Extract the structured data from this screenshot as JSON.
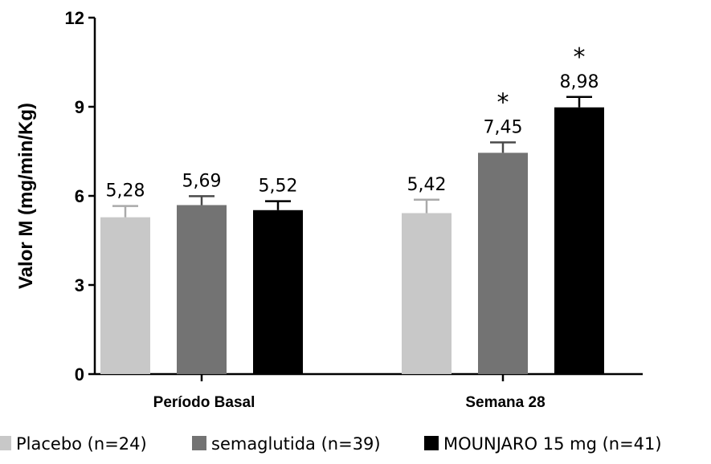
{
  "chart_data": {
    "type": "bar",
    "ylabel": "Valor M (mg/min/Kg)",
    "xlabel": "",
    "ylim": [
      0,
      12
    ],
    "yticks": [
      "0",
      "3",
      "6",
      "9",
      "12"
    ],
    "categories": [
      "Período Basal",
      "Semana 28"
    ],
    "series": [
      {
        "name": "Placebo (n=24)",
        "color": "#c8c8c8",
        "values": [
          5.28,
          5.42
        ],
        "errors": [
          0.38,
          0.45
        ],
        "labels": [
          "5,28",
          "5,42"
        ],
        "significance": [
          "",
          ""
        ]
      },
      {
        "name": "semaglutida (n=39)",
        "color": "#737373",
        "values": [
          5.69,
          7.45
        ],
        "errors": [
          0.3,
          0.35
        ],
        "labels": [
          "5,69",
          "7,45"
        ],
        "significance": [
          "",
          "*"
        ]
      },
      {
        "name": "MOUNJARO 15 mg (n=41)",
        "color": "#000000",
        "values": [
          5.52,
          8.98
        ],
        "errors": [
          0.3,
          0.35
        ],
        "labels": [
          "5,52",
          "8,98"
        ],
        "significance": [
          "",
          "*"
        ]
      }
    ],
    "legend_position": "bottom",
    "grid": false
  }
}
